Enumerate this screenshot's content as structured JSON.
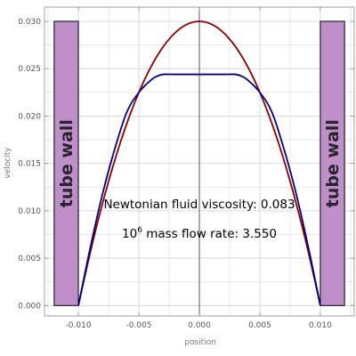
{
  "chart_data": {
    "type": "line",
    "title": "",
    "xlabel": "position",
    "ylabel": "velocity",
    "xlim": [
      -0.0128,
      0.0128
    ],
    "ylim": [
      -0.0011,
      0.0315
    ],
    "x_ticks": [
      -0.01,
      -0.005,
      0.0,
      0.005,
      0.01
    ],
    "x_tick_labels": [
      "-0.010",
      "-0.005",
      "0.000",
      "0.005",
      "0.010"
    ],
    "y_ticks": [
      0.0,
      0.005,
      0.01,
      0.015,
      0.02,
      0.025,
      0.03
    ],
    "y_tick_labels": [
      "0.000",
      "0.005",
      "0.010",
      "0.015",
      "0.020",
      "0.025",
      "0.030"
    ],
    "grid": true,
    "series": [
      {
        "color": "#8b0000",
        "x": [
          -0.01,
          -0.009,
          -0.008,
          -0.007,
          -0.006,
          -0.005,
          -0.004,
          -0.003,
          -0.002,
          -0.001,
          0.0,
          0.001,
          0.002,
          0.003,
          0.004,
          0.005,
          0.006,
          0.007,
          0.008,
          0.009,
          0.01
        ],
        "y": [
          0.0,
          0.0057,
          0.0108,
          0.0153,
          0.0192,
          0.0225,
          0.0252,
          0.0273,
          0.0288,
          0.0297,
          0.03,
          0.0297,
          0.0288,
          0.0273,
          0.0252,
          0.0225,
          0.0192,
          0.0153,
          0.0108,
          0.0057,
          0.0
        ]
      },
      {
        "color": "#000080",
        "x": [
          -0.01,
          -0.009,
          -0.008,
          -0.007,
          -0.006,
          -0.005,
          -0.004,
          -0.0035,
          -0.003,
          -0.002,
          0.0,
          0.002,
          0.003,
          0.0035,
          0.004,
          0.005,
          0.006,
          0.007,
          0.008,
          0.009,
          0.01
        ],
        "y": [
          0.0,
          0.0062,
          0.0118,
          0.0165,
          0.0204,
          0.0225,
          0.0238,
          0.0242,
          0.0244,
          0.0244,
          0.0244,
          0.0244,
          0.0244,
          0.0242,
          0.0238,
          0.0225,
          0.0204,
          0.0165,
          0.0118,
          0.0062,
          0.0
        ]
      }
    ],
    "walls": [
      {
        "label": "tube wall",
        "x_range": [
          -0.012,
          -0.01
        ],
        "y_range": [
          0.0,
          0.03
        ]
      },
      {
        "label": "tube wall",
        "x_range": [
          0.01,
          0.012
        ],
        "y_range": [
          0.0,
          0.03
        ]
      }
    ],
    "annotations": {
      "viscosity_text": "Newtonian fluid viscosity: 0.083",
      "flow_base": "10",
      "flow_exp": "6",
      "flow_text": " mass flow rate: 3.550"
    },
    "colors": {
      "wall_fill": "#bf8fca",
      "grid": "#d0d0d0",
      "axis": "#888888",
      "zero_line": "#333333"
    }
  }
}
